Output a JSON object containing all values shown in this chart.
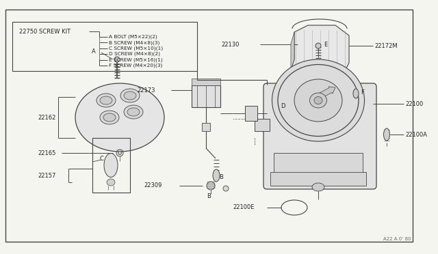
{
  "bg_color": "#f5f5f0",
  "line_color": "#444444",
  "text_color": "#222222",
  "fig_width": 6.4,
  "fig_height": 3.72,
  "screw_kit_label": "22750 SCREW KIT",
  "screw_items": [
    "A BOLT (M5×22)(2)",
    "B SCREW (M4×8)(3)",
    "C SCREW (M5×10)(1)",
    "D SCREW (M4×8)(2)",
    "E SCREW (M5×16)(1)",
    "F SCREW (M4×20)(3)"
  ]
}
